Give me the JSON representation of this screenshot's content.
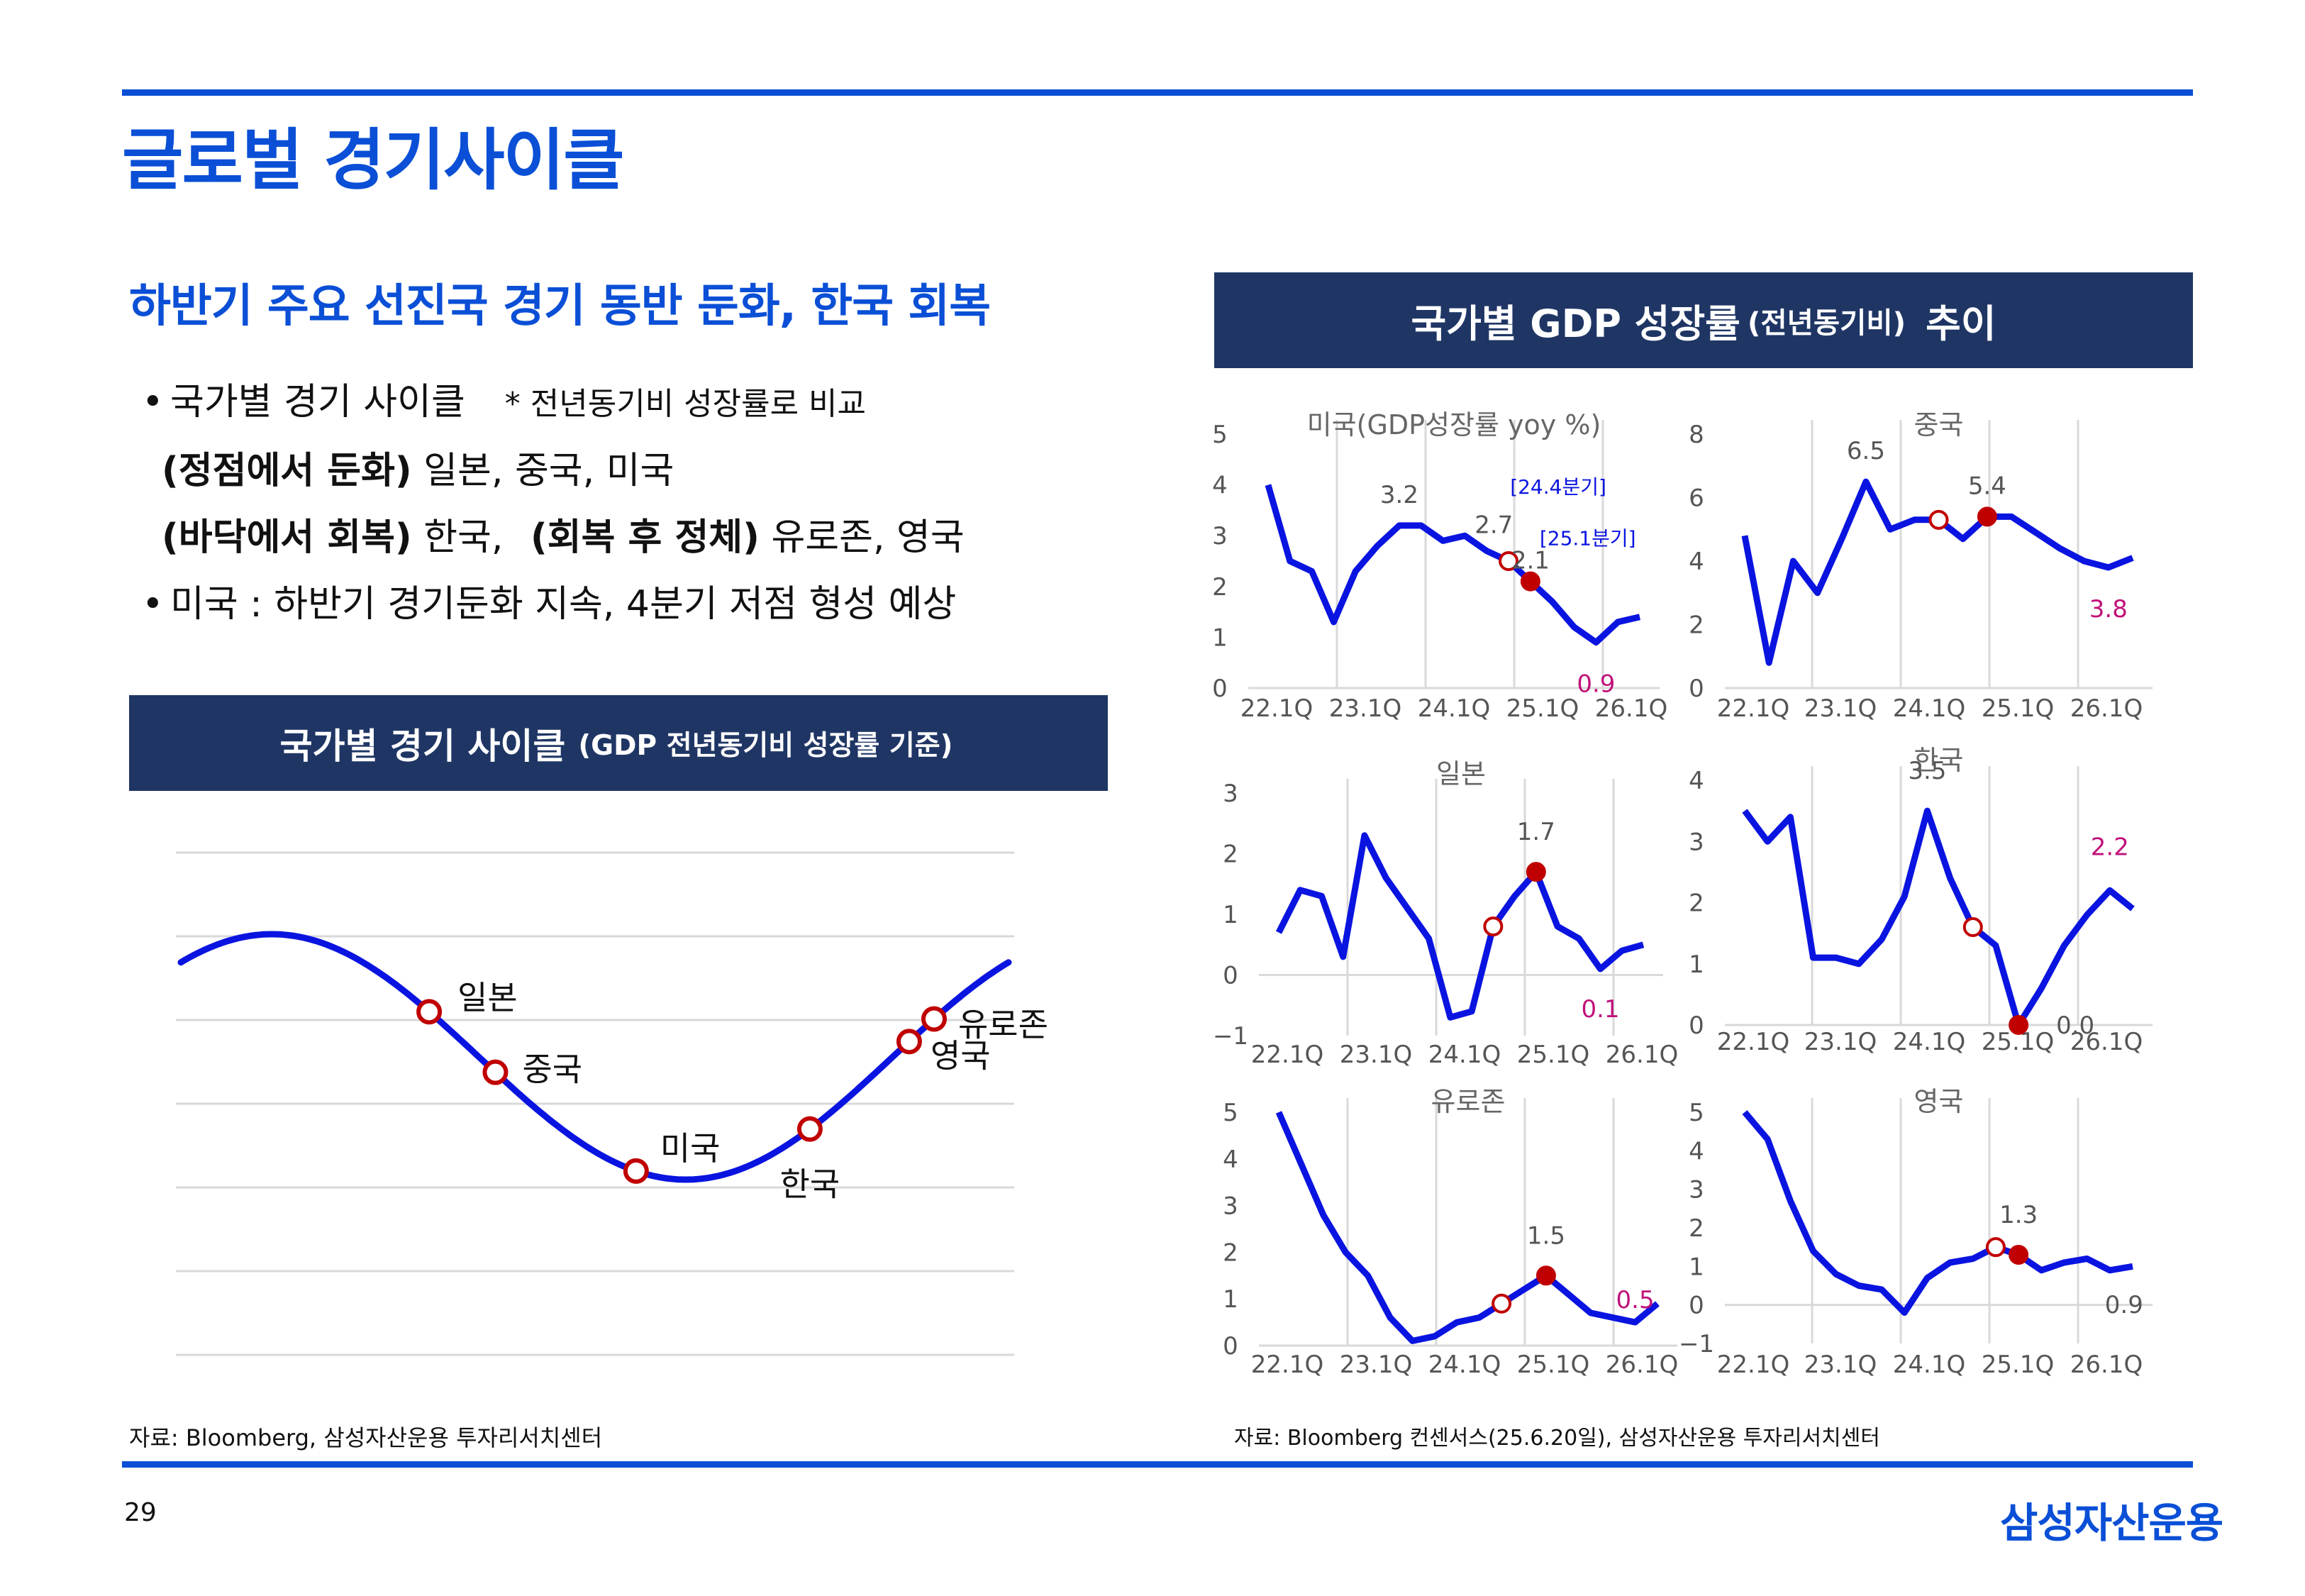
{
  "page": {
    "title": "글로벌 경기사이클",
    "subtitle": "하반기 주요 선진국 경기 동반 둔화, 한국 회복",
    "page_number": "29",
    "logo": "삼성자산운용"
  },
  "bullets": {
    "line1": "국가별 경기 사이클",
    "line1_note": "* 전년동기비 성장률로 비교",
    "line2_bold": "(정점에서 둔화)",
    "line2_rest": " 일본, 중국, 미국",
    "line3_bold1": "(바닥에서 회복)",
    "line3_mid": " 한국, ",
    "line3_bold2": "(회복 후 정체)",
    "line3_rest": " 유로존, 영국",
    "line4": "미국 : 하반기 경기둔화 지속, 4분기 저점 형성 예상"
  },
  "left_panel": {
    "banner_main": "국가별 경기 사이클",
    "banner_small": "(GDP 전년동기비 성장률 기준)",
    "source": "자료: Bloomberg, 삼성자산운용 투자리서치센터"
  },
  "right_panel": {
    "banner_main1": "국가별 GDP 성장률",
    "banner_small": "(전년동기비)",
    "banner_main2": "추이",
    "source": "자료: Bloomberg 컨센서스(25.6.20일), 삼성자산운용 투자리서치센터"
  },
  "colors": {
    "accent": "#0a4fd6",
    "line": "#0a14e0",
    "marker": "#c00000",
    "label_red": "#c0127a",
    "banner": "#1f3665",
    "grid": "#d9d9d9"
  },
  "chart_data": [
    {
      "type": "line",
      "title": "국가별 경기 사이클",
      "description_type": "cycle",
      "curve": "sine",
      "markers": [
        {
          "label": "일본",
          "phase": 0.3
        },
        {
          "label": "중국",
          "phase": 0.38
        },
        {
          "label": "미국",
          "phase": 0.55
        },
        {
          "label": "한국",
          "phase": 0.76
        },
        {
          "label": "영국",
          "phase": 0.88
        },
        {
          "label": "유로존",
          "phase": 0.91
        }
      ]
    },
    {
      "type": "line",
      "title": "미국(GDP성장률 yoy %)",
      "x_labels": [
        "22.1Q",
        "23.1Q",
        "24.1Q",
        "25.1Q",
        "26.1Q"
      ],
      "ylim": [
        0,
        5
      ],
      "yticks": [
        0,
        1,
        2,
        3,
        4,
        5
      ],
      "values": [
        4.0,
        2.5,
        2.3,
        1.3,
        2.3,
        2.8,
        3.2,
        3.2,
        2.9,
        3.0,
        2.7,
        2.5,
        2.1,
        1.7,
        1.2,
        0.9,
        1.3,
        1.4
      ],
      "open_marker_index": 11,
      "filled_marker_index": 12,
      "annotations": [
        {
          "text": "3.2",
          "index": 6,
          "color": "gray"
        },
        {
          "text": "2.7",
          "index": 10,
          "color": "gray"
        },
        {
          "text": "2.1",
          "index": 12,
          "color": "gray"
        },
        {
          "text": "0.9",
          "index": 15,
          "color": "red"
        },
        {
          "text": "[24.4분기]",
          "index": 11,
          "color": "blue"
        },
        {
          "text": "[25.1분기]",
          "index": 13,
          "color": "blue"
        }
      ]
    },
    {
      "type": "line",
      "title": "중국",
      "x_labels": [
        "22.1Q",
        "23.1Q",
        "24.1Q",
        "25.1Q",
        "26.1Q"
      ],
      "ylim": [
        0,
        8
      ],
      "yticks": [
        0,
        2,
        4,
        6,
        8
      ],
      "values": [
        4.8,
        0.8,
        4.0,
        3.0,
        4.7,
        6.5,
        5.0,
        5.3,
        5.3,
        4.7,
        5.4,
        5.4,
        4.9,
        4.4,
        4.0,
        3.8,
        4.1
      ],
      "open_marker_index": 8,
      "filled_marker_index": 10,
      "annotations": [
        {
          "text": "6.5",
          "index": 5,
          "color": "gray"
        },
        {
          "text": "5.4",
          "index": 10,
          "color": "gray"
        },
        {
          "text": "3.8",
          "index": 15,
          "color": "red"
        }
      ]
    },
    {
      "type": "line",
      "title": "일본",
      "x_labels": [
        "22.1Q",
        "23.1Q",
        "24.1Q",
        "25.1Q",
        "26.1Q"
      ],
      "ylim": [
        -1,
        3
      ],
      "yticks": [
        -1,
        0,
        1,
        2,
        3
      ],
      "values": [
        0.7,
        1.4,
        1.3,
        0.3,
        2.3,
        1.6,
        1.1,
        0.6,
        -0.7,
        -0.6,
        0.8,
        1.3,
        1.7,
        0.8,
        0.6,
        0.1,
        0.4,
        0.5
      ],
      "open_marker_index": 10,
      "filled_marker_index": 12,
      "annotations": [
        {
          "text": "1.7",
          "index": 12,
          "color": "gray"
        },
        {
          "text": "0.1",
          "index": 15,
          "color": "red"
        }
      ]
    },
    {
      "type": "line",
      "title": "한국",
      "x_labels": [
        "22.1Q",
        "23.1Q",
        "24.1Q",
        "25.1Q",
        "26.1Q"
      ],
      "ylim": [
        0,
        4
      ],
      "yticks": [
        0,
        1,
        2,
        3,
        4
      ],
      "values": [
        3.5,
        3.0,
        3.4,
        1.1,
        1.1,
        1.0,
        1.4,
        2.1,
        3.5,
        2.4,
        1.6,
        1.3,
        0.0,
        0.6,
        1.3,
        1.8,
        2.2,
        1.9
      ],
      "open_marker_index": 10,
      "filled_marker_index": 12,
      "annotations": [
        {
          "text": "3.5",
          "index": 8,
          "color": "gray"
        },
        {
          "text": "0.0",
          "index": 12,
          "color": "gray"
        },
        {
          "text": "2.2",
          "index": 16,
          "color": "red"
        }
      ]
    },
    {
      "type": "line",
      "title": "유로존",
      "x_labels": [
        "22.1Q",
        "23.1Q",
        "24.1Q",
        "25.1Q",
        "26.1Q"
      ],
      "ylim": [
        0,
        5
      ],
      "yticks": [
        0,
        1,
        2,
        3,
        4,
        5
      ],
      "values": [
        5.0,
        3.9,
        2.8,
        2.0,
        1.5,
        0.6,
        0.1,
        0.2,
        0.5,
        0.6,
        0.9,
        1.2,
        1.5,
        1.1,
        0.7,
        0.6,
        0.5,
        0.9
      ],
      "open_marker_index": 10,
      "filled_marker_index": 12,
      "annotations": [
        {
          "text": "1.5",
          "index": 12,
          "color": "gray"
        },
        {
          "text": "0.5",
          "index": 16,
          "color": "red"
        }
      ]
    },
    {
      "type": "line",
      "title": "영국",
      "x_labels": [
        "22.1Q",
        "23.1Q",
        "24.1Q",
        "25.1Q",
        "26.1Q"
      ],
      "ylim": [
        -1,
        5
      ],
      "yticks": [
        -1,
        0,
        1,
        2,
        3,
        4,
        5
      ],
      "values": [
        5.0,
        4.3,
        2.7,
        1.4,
        0.8,
        0.5,
        0.4,
        -0.2,
        0.7,
        1.1,
        1.2,
        1.5,
        1.3,
        0.9,
        1.1,
        1.2,
        0.9,
        1.0
      ],
      "open_marker_index": 11,
      "filled_marker_index": 12,
      "annotations": [
        {
          "text": "1.3",
          "index": 12,
          "color": "gray"
        },
        {
          "text": "0.9",
          "index": 16,
          "color": "gray"
        }
      ]
    }
  ]
}
